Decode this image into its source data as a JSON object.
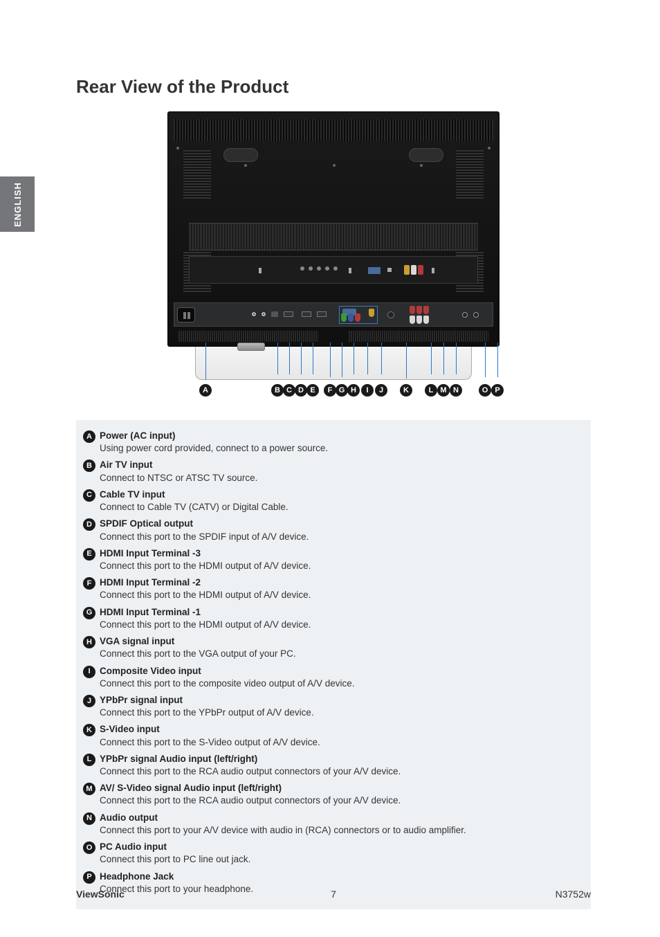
{
  "sideTab": "ENGLISH",
  "title": "Rear View of the Product",
  "labels": [
    "A",
    "B",
    "C",
    "D",
    "E",
    "F",
    "G",
    "H",
    "I",
    "J",
    "K",
    "L",
    "M",
    "N",
    "O",
    "P"
  ],
  "defs": [
    {
      "key": "A",
      "title": "Power (AC input)",
      "desc": "Using power cord provided, connect to a power source."
    },
    {
      "key": "B",
      "title": "Air TV input",
      "desc": "Connect to NTSC or ATSC TV source."
    },
    {
      "key": "C",
      "title": "Cable TV input",
      "desc": "Connect to Cable TV (CATV) or Digital Cable."
    },
    {
      "key": "D",
      "title": "SPDIF Optical output",
      "desc": "Connect this port to the SPDIF input of A/V device."
    },
    {
      "key": "E",
      "title": "HDMI Input Terminal -3",
      "desc": "Connect this port to the HDMI output of A/V device."
    },
    {
      "key": "F",
      "title": "HDMI Input Terminal -2",
      "desc": "Connect this port to the HDMI output of A/V device."
    },
    {
      "key": "G",
      "title": "HDMI Input Terminal -1",
      "desc": "Connect this port to the HDMI output of A/V device."
    },
    {
      "key": "H",
      "title": "VGA signal input",
      "desc": "Connect this port to the VGA output of your PC."
    },
    {
      "key": "I",
      "title": "Composite Video input",
      "desc": "Connect this port to the composite video output of A/V device."
    },
    {
      "key": "J",
      "title": "YPbPr signal input",
      "desc": "Connect this port to the YPbPr output of A/V device."
    },
    {
      "key": "K",
      "title": "S-Video input",
      "desc": "Connect this port to the S-Video output of A/V device."
    },
    {
      "key": "L",
      "title": "YPbPr signal Audio input (left/right)",
      "desc": "Connect this port to the RCA audio output connectors of your A/V device."
    },
    {
      "key": "M",
      "title": "AV/ S-Video signal Audio input (left/right)",
      "desc": "Connect this port to the RCA audio output connectors of your A/V device."
    },
    {
      "key": "N",
      "title": "Audio output",
      "desc": "Connect this port to your A/V device with audio in (RCA) connectors or to audio amplifier."
    },
    {
      "key": "O",
      "title": "PC Audio input",
      "desc": "Connect this port to PC line out jack."
    },
    {
      "key": "P",
      "title": "Headphone Jack",
      "desc": "Connect this port to your headphone."
    }
  ],
  "footer": {
    "brand": "ViewSonic",
    "page": "7",
    "model": "N3752w"
  },
  "colors": {
    "sideTabBg": "#747679",
    "leader": "#2b77c4",
    "defBoxBg": "#eef1f4",
    "rca_green": "#3a9a3a",
    "rca_blue": "#3a5aa0",
    "rca_red": "#b03a3a",
    "rca_yellow": "#c8a030",
    "rca_white": "#d8d8d8"
  },
  "labelPositions": {
    "A": 14,
    "group1_start": 118,
    "group1_gap": 17,
    "gap_after_E": 8,
    "group2_start": 228,
    "group2_gap": 20,
    "K": 304,
    "group3_start": 340,
    "group3_gap": 18,
    "group4_start": 418,
    "group4_gap": 18
  }
}
